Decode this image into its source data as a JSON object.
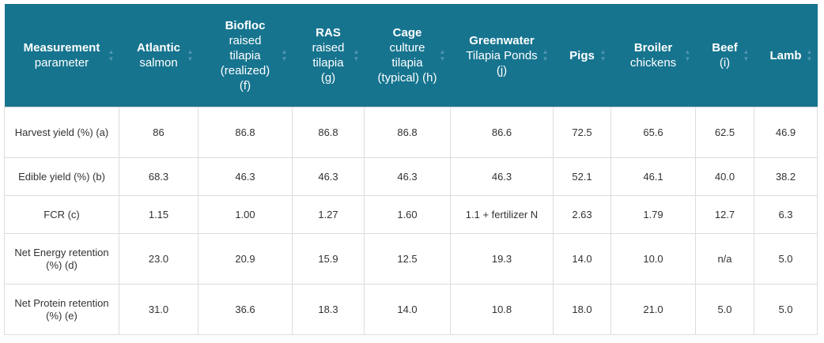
{
  "headers": [
    {
      "bold": "Measurement",
      "rest": "parameter"
    },
    {
      "bold": "Atlantic",
      "rest": "salmon"
    },
    {
      "bold": "Biofloc",
      "rest": "raised tilapia (realized) (f)"
    },
    {
      "bold": "RAS",
      "rest": "raised tilapia (g)"
    },
    {
      "bold": "Cage",
      "rest": "culture tilapia (typical) (h)"
    },
    {
      "bold": "Greenwater",
      "rest": "Tilapia Ponds (j)"
    },
    {
      "bold": "Pigs",
      "rest": ""
    },
    {
      "bold": "Broiler",
      "rest": "chickens"
    },
    {
      "bold": "Beef",
      "rest": "(i)"
    },
    {
      "bold": "Lamb",
      "rest": ""
    }
  ],
  "rows": [
    [
      "Harvest yield (%) (a)",
      "86",
      "86.8",
      "86.8",
      "86.8",
      "86.6",
      "72.5",
      "65.6",
      "62.5",
      "46.9"
    ],
    [
      "Edible yield (%) (b)",
      "68.3",
      "46.3",
      "46.3",
      "46.3",
      "46.3",
      "52.1",
      "46.1",
      "40.0",
      "38.2"
    ],
    [
      "FCR (c)",
      "1.15",
      "1.00",
      "1.27",
      "1.60",
      "1.1 + fertilizer N",
      "2.63",
      "1.79",
      "12.7",
      "6.3"
    ],
    [
      "Net Energy retention (%) (d)",
      "23.0",
      "20.9",
      "15.9",
      "12.5",
      "19.3",
      "14.0",
      "10.0",
      "n/a",
      "5.0"
    ],
    [
      "Net Protein retention (%) (e)",
      "31.0",
      "36.6",
      "18.3",
      "14.0",
      "10.8",
      "18.0",
      "21.0",
      "5.0",
      "5.0"
    ]
  ]
}
